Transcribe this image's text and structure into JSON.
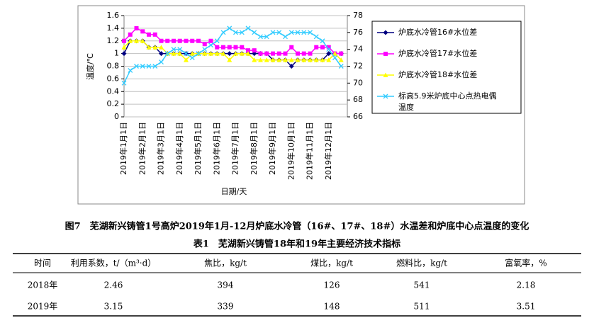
{
  "chart_data": {
    "type": "line",
    "y_label": "温度/℃",
    "x_label": "日期/天",
    "categories": [
      "2019年1月1日",
      null,
      null,
      "2019年2月1日",
      null,
      null,
      "2019年3月1日",
      null,
      null,
      "2019年4月1日",
      null,
      null,
      "2019年5月1日",
      null,
      null,
      "2019年6月1日",
      null,
      null,
      "2019年7月1日",
      null,
      null,
      "2019年8月1日",
      null,
      null,
      "2019年9月1日",
      null,
      null,
      "2019年10月1日",
      null,
      null,
      "2019年11月1日",
      null,
      null,
      "2019年12月1日",
      null,
      null
    ],
    "series": [
      {
        "name": "炉底水冷管16#水位差",
        "color": "#000080",
        "marker": "diamond",
        "values": [
          1.0,
          1.2,
          1.2,
          1.2,
          1.1,
          1.1,
          1.0,
          1.0,
          1.0,
          1.0,
          1.0,
          1.0,
          1.0,
          1.0,
          1.0,
          1.0,
          1.0,
          1.0,
          1.0,
          1.0,
          1.0,
          1.0,
          1.0,
          1.0,
          0.9,
          0.9,
          0.9,
          0.8,
          0.9,
          0.9,
          0.9,
          0.9,
          0.9,
          1.0,
          1.0,
          1.0
        ]
      },
      {
        "name": "炉底水冷管17#水位差",
        "color": "#ff00ff",
        "marker": "square",
        "values": [
          1.2,
          1.3,
          1.4,
          1.35,
          1.3,
          1.3,
          1.2,
          1.2,
          1.2,
          1.2,
          1.2,
          1.2,
          1.2,
          1.15,
          1.2,
          1.1,
          1.1,
          1.1,
          1.1,
          1.1,
          1.05,
          1.05,
          1.0,
          1.0,
          1.0,
          1.0,
          1.0,
          1.1,
          1.0,
          1.0,
          1.0,
          1.1,
          1.1,
          1.1,
          1.0,
          1.0
        ]
      },
      {
        "name": "炉底水冷管18#水位差",
        "color": "#ffff00",
        "marker": "triangle",
        "values": [
          1.1,
          1.2,
          1.2,
          1.2,
          1.1,
          1.1,
          1.1,
          1.0,
          1.0,
          1.0,
          0.9,
          1.0,
          1.0,
          1.0,
          1.0,
          1.0,
          1.0,
          0.9,
          1.0,
          1.0,
          1.0,
          0.9,
          0.9,
          0.9,
          0.9,
          0.9,
          0.9,
          0.9,
          0.9,
          0.9,
          0.9,
          0.9,
          0.9,
          0.9,
          1.0,
          0.9
        ]
      },
      {
        "name": "标高5.9米炉底中心点热电偶温度",
        "color": "#33ccff",
        "marker": "cross",
        "axis": "y2",
        "values": [
          70,
          71.5,
          72,
          72,
          72,
          72,
          72.5,
          73.5,
          74,
          74,
          73.5,
          73,
          73.5,
          74,
          74.5,
          75,
          76,
          76.5,
          76,
          76,
          76.5,
          76,
          75.5,
          75.5,
          76,
          76,
          75.5,
          76,
          76,
          76,
          76,
          75.5,
          75,
          74,
          73,
          72
        ]
      }
    ],
    "ylim": [
      0,
      1.6
    ],
    "yticks": [
      0,
      0.2,
      0.4,
      0.6,
      0.8,
      1,
      1.2,
      1.4,
      1.6
    ],
    "y2lim": [
      66,
      78
    ],
    "y2ticks": [
      66,
      68,
      70,
      72,
      74,
      76,
      78
    ],
    "grid": true,
    "legend": "right"
  },
  "figure_caption": "图7　芜湖新兴铸管1号高炉2019年1月-12月炉底水冷管（16#、17#、18#）水温差和炉底中心点温度的变化",
  "table": {
    "title": "表1　芜湖新兴铸管18年和19年主要经济技术指标",
    "header": [
      "时间",
      "利用系数，t/（m³·d）",
      "焦比，kg/t",
      "煤比，kg/t",
      "燃料比，kg/t",
      "富氧率，%"
    ],
    "rows": [
      [
        "2018年",
        "2.46",
        "394",
        "126",
        "541",
        "2.18"
      ],
      [
        "2019年",
        "3.15",
        "339",
        "148",
        "511",
        "3.51"
      ]
    ]
  }
}
